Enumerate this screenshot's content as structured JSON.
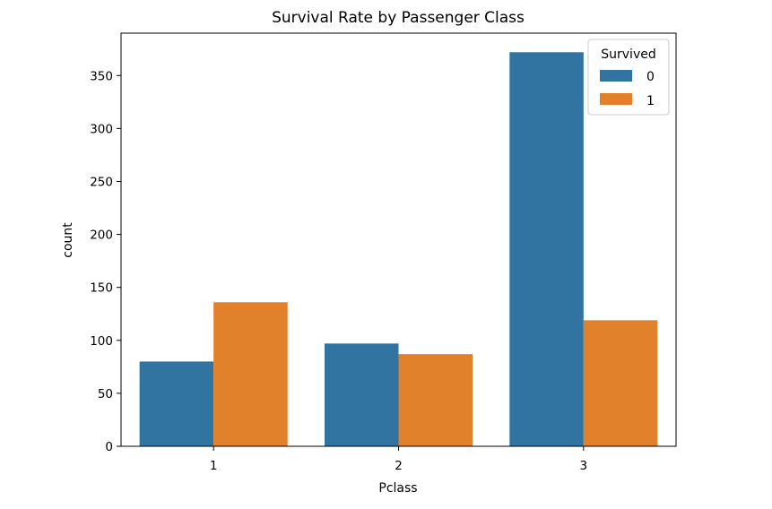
{
  "chart_data": {
    "type": "bar",
    "title": "Survival Rate by Passenger Class",
    "xlabel": "Pclass",
    "ylabel": "count",
    "categories": [
      "1",
      "2",
      "3"
    ],
    "ylim": [
      0,
      390
    ],
    "yticks": [
      0,
      50,
      100,
      150,
      200,
      250,
      300,
      350
    ],
    "series": [
      {
        "name": "0",
        "values": [
          80,
          97,
          372
        ],
        "color": "#3274a1"
      },
      {
        "name": "1",
        "values": [
          136,
          87,
          119
        ],
        "color": "#e1812c"
      }
    ],
    "legend": {
      "title": "Survived",
      "position": "top-right"
    },
    "grid": false
  }
}
